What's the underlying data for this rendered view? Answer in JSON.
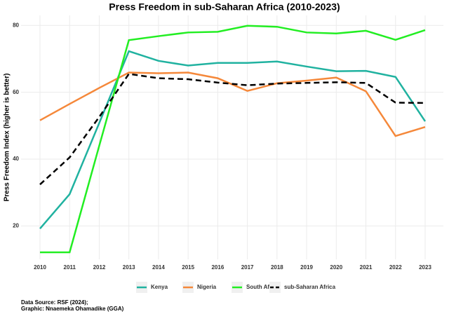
{
  "chart_data": {
    "type": "line",
    "title": "Press Freedom in sub-Saharan Africa (2010-2023)",
    "y_label": "Press Freedom Index (higher is better)",
    "x": [
      2010,
      2011,
      2012,
      2013,
      2014,
      2015,
      2016,
      2017,
      2018,
      2019,
      2020,
      2021,
      2022,
      2023
    ],
    "xticks": [
      2010,
      2011,
      2012,
      2013,
      2014,
      2015,
      2016,
      2017,
      2018,
      2019,
      2020,
      2021,
      2022,
      2023
    ],
    "ylim": [
      10,
      83
    ],
    "yticks": [
      20,
      40,
      60,
      80
    ],
    "grid": true,
    "legend": "bottom",
    "series": [
      {
        "name": "Kenya",
        "color": "#20b2a0",
        "linetype": "solid",
        "values": [
          19.2,
          29.5,
          50.8,
          72.3,
          69.4,
          68.0,
          68.8,
          68.8,
          69.2,
          67.7,
          66.3,
          66.4,
          64.6,
          51.3
        ]
      },
      {
        "name": "Nigeria",
        "color": "#f5883a",
        "linetype": "solid",
        "values": [
          51.6,
          56.5,
          61.3,
          65.9,
          65.7,
          65.9,
          64.2,
          60.4,
          62.7,
          63.5,
          64.4,
          60.3,
          46.9,
          49.6
        ]
      },
      {
        "name": "South Africa",
        "color": "#22ee22",
        "linetype": "solid",
        "values": [
          12.1,
          12.1,
          44.0,
          75.6,
          76.8,
          77.9,
          78.1,
          79.9,
          79.6,
          77.9,
          77.6,
          78.4,
          75.7,
          78.6
        ]
      },
      {
        "name": "sub-Saharan Africa",
        "color": "#000000",
        "linetype": "dashed",
        "values": [
          32.4,
          40.5,
          52.6,
          65.5,
          64.2,
          63.9,
          62.9,
          62.1,
          62.6,
          62.8,
          63.0,
          62.8,
          56.9,
          56.8
        ]
      }
    ],
    "caption": [
      "Data Source: RSF (2024);",
      "Graphic: Nnaemeka Ohamadike (GGA)"
    ]
  }
}
